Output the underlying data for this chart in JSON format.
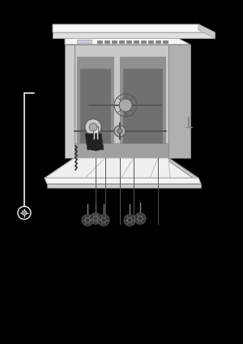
{
  "bg_color": "#000000",
  "figsize": [
    3.0,
    4.25
  ],
  "dpi": 100,
  "colors": {
    "white": "#ffffff",
    "near_white": "#f5f5f5",
    "light_gray": "#e0e0e0",
    "mid_light": "#cccccc",
    "mid_gray": "#aaaaaa",
    "gray": "#888888",
    "dark_gray": "#555555",
    "darker": "#333333",
    "very_dark": "#222222",
    "black": "#000000",
    "interior_bg": "#c8c8c8",
    "interior_dark": "#909090",
    "interior_darker": "#707070",
    "side_gray": "#b0b0b0",
    "door_white": "#f0f0f0",
    "countertop": "#f8f8f8"
  }
}
